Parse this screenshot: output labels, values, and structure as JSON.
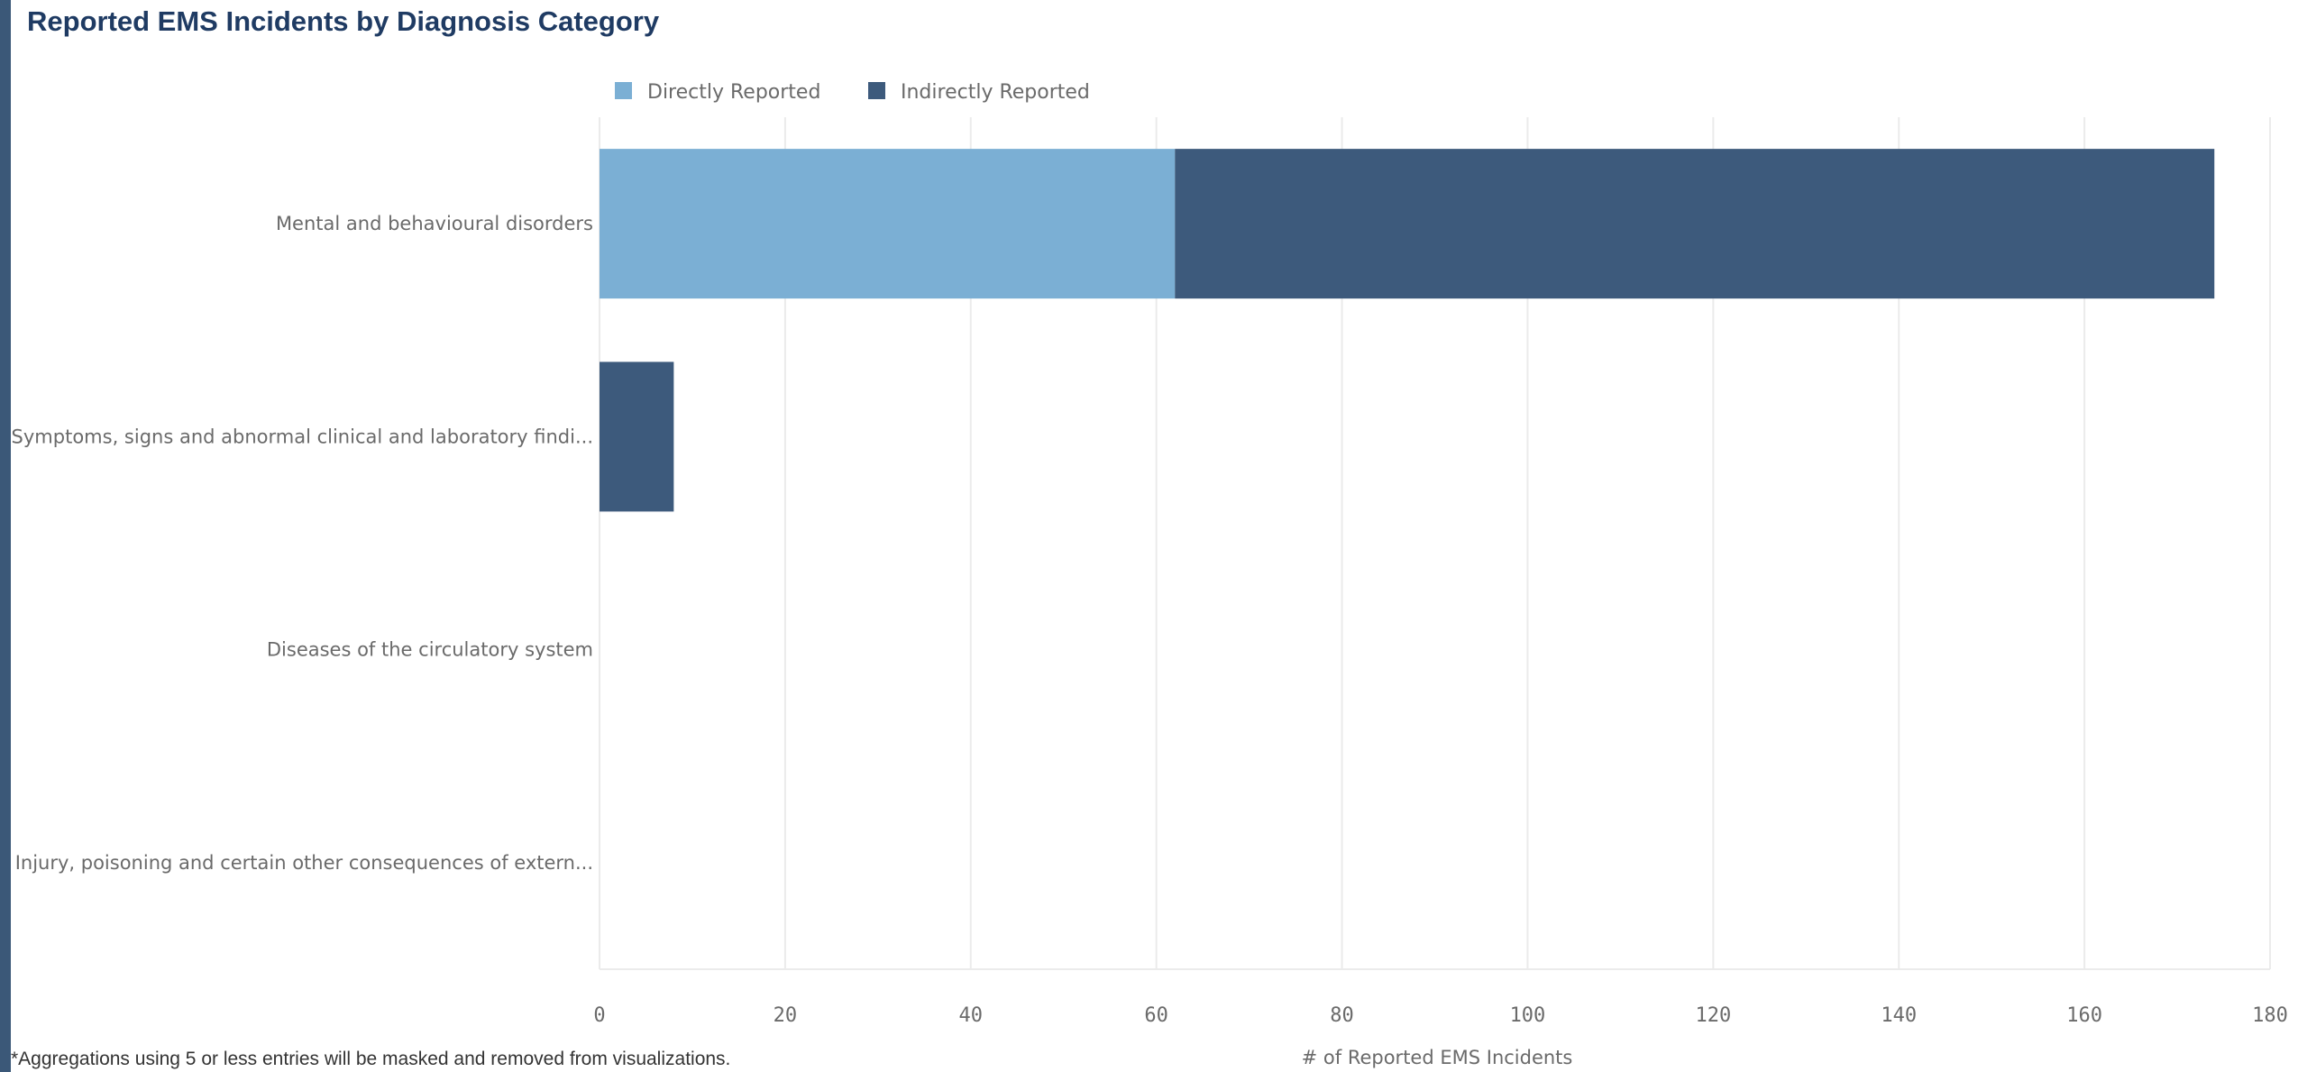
{
  "title": "Reported EMS Incidents by Diagnosis Category",
  "footnote": "*Aggregations using 5 or less entries will be masked and removed from visualizations.",
  "colors": {
    "directly": "#7bafd4",
    "indirectly": "#3d5a7c",
    "grid": "#ebebeb",
    "frame": "#3b5878",
    "title": "#1f3b63"
  },
  "chart_data": {
    "type": "bar",
    "orientation": "horizontal",
    "stacked": true,
    "categories": [
      "Mental and behavioural disorders",
      "Symptoms, signs and abnormal clinical and laboratory findi...",
      "Diseases of the circulatory system",
      "Injury, poisoning and certain other consequences of extern..."
    ],
    "series": [
      {
        "name": "Directly Reported",
        "values": [
          62,
          0,
          0,
          0
        ]
      },
      {
        "name": "Indirectly Reported",
        "values": [
          112,
          8,
          0,
          0
        ]
      }
    ],
    "xlabel": "# of Reported EMS Incidents",
    "xlim": [
      0,
      180
    ],
    "xticks": [
      "0",
      "20",
      "40",
      "60",
      "80",
      "100",
      "120",
      "140",
      "160",
      "180"
    ],
    "grid": "vertical",
    "legend": "top"
  }
}
